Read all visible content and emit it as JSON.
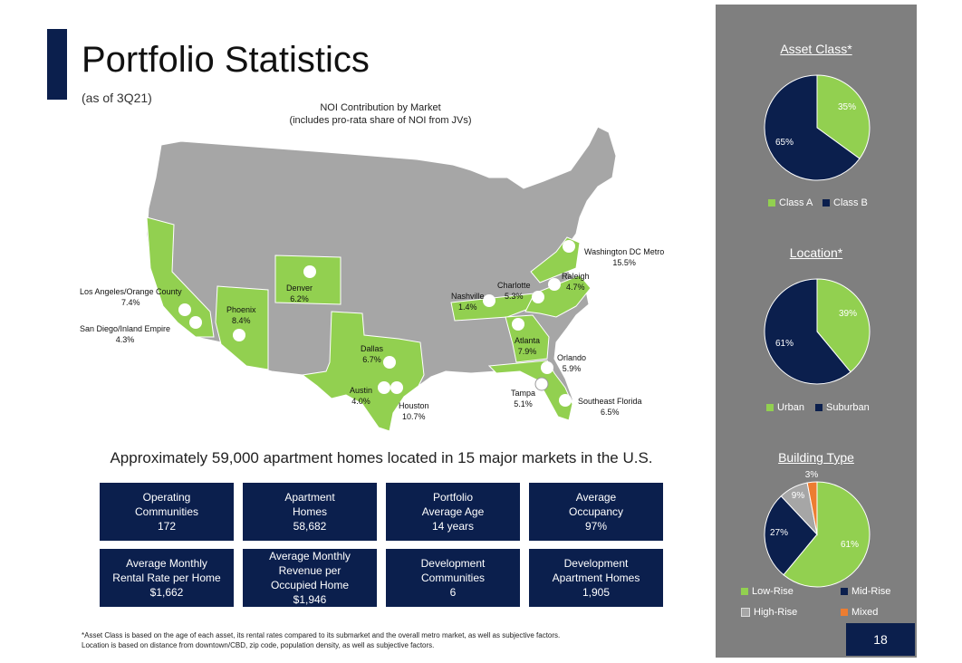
{
  "header": {
    "title": "Portfolio Statistics",
    "subtitle": "(as of 3Q21)"
  },
  "map": {
    "title_line1": "NOI Contribution by Market",
    "title_line2": "(includes pro-rata share of NOI from JVs)",
    "highlight_color": "#92d050",
    "base_color": "#a6a6a6",
    "markets": [
      {
        "name": "Los Angeles/Orange County",
        "value": "7.4%"
      },
      {
        "name": "San Diego/Inland Empire",
        "value": "4.3%"
      },
      {
        "name": "Phoenix",
        "value": "8.4%"
      },
      {
        "name": "Denver",
        "value": "6.2%"
      },
      {
        "name": "Dallas",
        "value": "6.7%"
      },
      {
        "name": "Austin",
        "value": "4.0%"
      },
      {
        "name": "Houston",
        "value": "10.7%"
      },
      {
        "name": "Nashville",
        "value": "1.4%"
      },
      {
        "name": "Charlotte",
        "value": "5.3%"
      },
      {
        "name": "Raleigh",
        "value": "4.7%"
      },
      {
        "name": "Washington DC Metro",
        "value": "15.5%"
      },
      {
        "name": "Atlanta",
        "value": "7.9%"
      },
      {
        "name": "Orlando",
        "value": "5.9%"
      },
      {
        "name": "Tampa",
        "value": "5.1%"
      },
      {
        "name": "Southeast Florida",
        "value": "6.5%"
      }
    ]
  },
  "tagline": "Approximately 59,000 apartment homes located in 15 major markets in the U.S.",
  "stats": [
    {
      "lines": [
        "Operating",
        "Communities",
        "172"
      ]
    },
    {
      "lines": [
        "Apartment",
        "Homes",
        "58,682"
      ]
    },
    {
      "lines": [
        "Portfolio",
        "Average Age",
        "14 years"
      ]
    },
    {
      "lines": [
        "Average",
        "Occupancy",
        "97%"
      ]
    },
    {
      "lines": [
        "Average Monthly",
        "Rental Rate per Home",
        "$1,662"
      ]
    },
    {
      "lines": [
        "Average Monthly",
        "Revenue per",
        "Occupied Home",
        "$1,946"
      ]
    },
    {
      "lines": [
        "Development",
        "Communities",
        "6"
      ]
    },
    {
      "lines": [
        "Development",
        "Apartment Homes",
        "1,905"
      ]
    }
  ],
  "footnote": {
    "line1": "*Asset Class is based on the age of each asset, its rental rates compared to its submarket and the overall metro market, as well as subjective factors.",
    "line2": "Location is based on distance from downtown/CBD, zip code, population density, as well as subjective factors."
  },
  "chart_data": [
    {
      "type": "pie",
      "title": "Asset Class*",
      "categories": [
        "Class A",
        "Class B"
      ],
      "values": [
        35,
        65
      ],
      "labels": [
        "35%",
        "65%"
      ],
      "colors": [
        "#92d050",
        "#0b1f4d"
      ]
    },
    {
      "type": "pie",
      "title": "Location*",
      "categories": [
        "Urban",
        "Suburban"
      ],
      "values": [
        39,
        61
      ],
      "labels": [
        "39%",
        "61%"
      ],
      "colors": [
        "#92d050",
        "#0b1f4d"
      ]
    },
    {
      "type": "pie",
      "title": "Building Type",
      "categories": [
        "Low-Rise",
        "Mid-Rise",
        "High-Rise",
        "Mixed"
      ],
      "values": [
        61,
        27,
        9,
        3
      ],
      "labels": [
        "61%",
        "27%",
        "9%",
        "3%"
      ],
      "colors": [
        "#92d050",
        "#0b1f4d",
        "#a6a6a6",
        "#ed7d31"
      ]
    }
  ],
  "page_number": "18"
}
